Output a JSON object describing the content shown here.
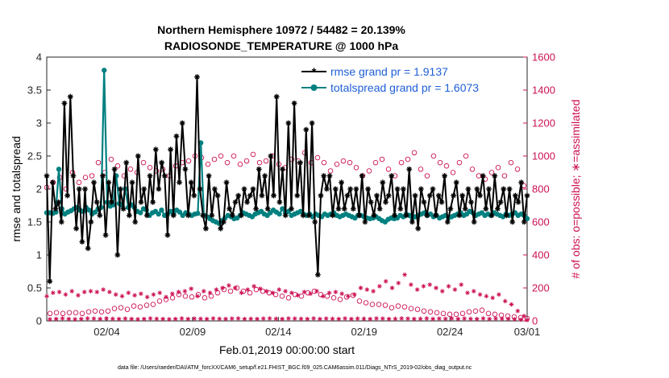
{
  "chart_data": {
    "type": "line",
    "title": "Northern Hemisphere 10972 / 54482 = 20.139%",
    "subtitle": "RADIOSONDE_TEMPERATURE @ 1000 hPa",
    "xlabel": "Feb.01,2019 00:00:00 start",
    "ylabel_left": "rmse and totalspread",
    "ylabel_right": "# of obs: o=possible; ∗=assimilated",
    "footer": "data file: /Users/raeder/DAI/ATM_forcXX/CAM6_setup/f.e21.FHIST_BGC.f09_025.CAM6assim.011/Diags_NTrS_2019-02/obs_diag_output.nc",
    "x_range": [
      1,
      29
    ],
    "ylim_left": [
      0,
      4
    ],
    "ylim_right": [
      0,
      1600
    ],
    "xticks": [
      {
        "value": 4.5,
        "label": "02/04"
      },
      {
        "value": 9.5,
        "label": "02/09"
      },
      {
        "value": 14.5,
        "label": "02/14"
      },
      {
        "value": 19.5,
        "label": "02/19"
      },
      {
        "value": 24.5,
        "label": "02/24"
      },
      {
        "value": 29.5,
        "label": "03/01"
      }
    ],
    "yticks_left": [
      "0",
      "0.5",
      "1",
      "1.5",
      "2",
      "2.5",
      "3",
      "3.5",
      "4"
    ],
    "yticks_right": [
      "0",
      "200",
      "400",
      "600",
      "800",
      "1000",
      "1200",
      "1400",
      "1600"
    ],
    "series": [
      {
        "name": "rmse grand pr = 1.9137",
        "axis": "left",
        "color": "#000000",
        "marker": "asterisk",
        "values": [
          2.2,
          0.6,
          2.1,
          1.7,
          1.8,
          1.5,
          3.3,
          1.9,
          3.4,
          2.2,
          1.4,
          2.0,
          1.2,
          2.0,
          1.1,
          1.5,
          2.1,
          1.8,
          1.6,
          2.2,
          1.3,
          2.1,
          1.8,
          2.3,
          1.0,
          2.0,
          1.7,
          2.4,
          1.6,
          2.1,
          1.5,
          2.5,
          1.8,
          2.0,
          1.6,
          2.2,
          1.8,
          2.6,
          2.0,
          2.4,
          2.2,
          1.3,
          2.6,
          1.6,
          2.8,
          2.1,
          3.0,
          2.3,
          1.6,
          2.1,
          1.9,
          3.7,
          2.0,
          1.6,
          1.4,
          2.2,
          1.6,
          2.0,
          1.9,
          1.4,
          1.5,
          2.1,
          1.7,
          1.6,
          1.8,
          1.9,
          1.6,
          2.0,
          1.8,
          1.9,
          2.0,
          1.7,
          2.3,
          1.9,
          2.2,
          1.7,
          2.5,
          1.9,
          3.4,
          1.8,
          2.3,
          1.6,
          3.0,
          1.7,
          3.3,
          1.9,
          2.4,
          1.6,
          2.9,
          1.6,
          3.0,
          1.5,
          0.7,
          1.9,
          2.2,
          2.0,
          2.2,
          1.6,
          2.0,
          1.7,
          2.1,
          1.7,
          1.9,
          2.0,
          1.7,
          2.0,
          1.6,
          2.2,
          1.5,
          2.0,
          1.8,
          1.6,
          1.9,
          1.7,
          2.1,
          1.8,
          1.9,
          2.2,
          1.6,
          2.0,
          1.7,
          2.0,
          1.6,
          2.3,
          1.5,
          1.9,
          1.4,
          2.0,
          1.8,
          1.6,
          1.9,
          2.0,
          1.6,
          1.9,
          1.8,
          2.2,
          1.5,
          1.7,
          1.9,
          2.1,
          1.6,
          1.9,
          1.7,
          2.0,
          1.8,
          1.5,
          2.0,
          1.9,
          2.2,
          1.7,
          2.0,
          1.6,
          2.2,
          1.7,
          1.8,
          2.0,
          1.6,
          2.0,
          1.5,
          1.9,
          1.8,
          2.1,
          1.5,
          1.9
        ]
      },
      {
        "name": "totalspread grand pr = 1.6073",
        "axis": "left",
        "color": "#008080",
        "marker": "dot",
        "values": [
          1.64,
          1.64,
          1.63,
          1.65,
          2.3,
          1.7,
          1.62,
          1.65,
          1.67,
          1.7,
          1.72,
          1.68,
          1.66,
          1.72,
          1.68,
          1.62,
          1.65,
          1.7,
          1.72,
          3.8,
          1.8,
          1.74,
          1.76,
          2.2,
          1.78,
          1.75,
          2.0,
          1.72,
          1.76,
          1.72,
          1.66,
          1.64,
          1.7,
          1.68,
          1.6,
          1.64,
          1.66,
          1.62,
          1.68,
          1.6,
          1.62,
          1.66,
          1.62,
          1.68,
          1.65,
          1.6,
          1.64,
          1.62,
          1.6,
          1.62,
          1.63,
          2.7,
          1.6,
          1.58,
          1.55,
          1.52,
          1.5,
          1.48,
          1.52,
          1.56,
          1.6,
          1.58,
          1.55,
          1.56,
          1.6,
          1.64,
          1.62,
          1.6,
          1.58,
          1.62,
          1.64,
          1.66,
          1.62,
          1.6,
          1.64,
          1.68,
          1.65,
          1.62,
          1.7,
          1.64,
          1.66,
          1.6,
          1.62,
          1.64,
          1.66,
          1.62,
          1.6,
          1.62,
          1.58,
          1.62,
          1.6,
          1.58,
          1.62,
          1.6,
          1.62,
          1.64,
          1.6,
          1.58,
          1.6,
          1.62,
          1.6,
          1.58,
          1.56,
          1.6,
          1.6,
          1.58,
          1.56,
          1.55,
          1.56,
          1.58,
          1.55,
          1.52,
          1.5,
          1.54,
          1.56,
          1.55,
          1.56,
          1.6,
          1.58,
          1.62,
          1.6,
          1.56,
          1.58,
          1.6,
          1.62,
          1.64,
          1.6,
          1.62,
          1.58,
          1.6,
          1.56,
          1.58,
          1.6,
          1.56,
          1.58,
          1.6,
          1.62,
          1.64,
          1.6,
          1.62,
          1.66,
          1.64,
          1.6,
          1.62,
          1.64,
          1.6,
          1.62,
          1.6,
          1.64,
          1.62,
          1.6,
          1.58,
          1.62,
          1.6,
          1.62,
          1.64,
          1.6,
          1.62,
          1.6,
          1.55
        ]
      },
      {
        "name": "possible",
        "axis": "right",
        "color": "#cc1155",
        "marker": "circle",
        "values": [
          810,
          45,
          840,
          50,
          870,
          45,
          800,
          50,
          900,
          50,
          840,
          45,
          870,
          55,
          880,
          60,
          960,
          55,
          900,
          60,
          980,
          75,
          940,
          80,
          880,
          70,
          920,
          90,
          900,
          85,
          960,
          95,
          930,
          100,
          910,
          120,
          920,
          130,
          880,
          140,
          940,
          160,
          960,
          150,
          970,
          145,
          1000,
          160,
          990,
          140,
          950,
          150,
          980,
          170,
          1000,
          190,
          960,
          180,
          1000,
          200,
          950,
          180,
          970,
          170,
          1010,
          190,
          960,
          180,
          970,
          170,
          1000,
          160,
          950,
          150,
          930,
          140,
          980,
          160,
          970,
          150,
          1020,
          170,
          960,
          180,
          990,
          160,
          960,
          150,
          910,
          140,
          950,
          130,
          970,
          145,
          960,
          155,
          930,
          120,
          880,
          110,
          910,
          100,
          960,
          100,
          980,
          95,
          920,
          80,
          880,
          90,
          960,
          85,
          980,
          75,
          1020,
          70,
          920,
          60,
          880,
          55,
          1000,
          50,
          960,
          45,
          940,
          40,
          900,
          40,
          960,
          45,
          1000,
          55,
          920,
          60,
          880,
          65,
          860,
          45,
          900,
          40,
          930,
          35,
          880,
          30,
          960,
          25,
          920,
          20,
          820,
          15
        ]
      },
      {
        "name": "assimilated",
        "axis": "right",
        "color": "#cc1155",
        "marker": "asterisk",
        "values": [
          150,
          10,
          170,
          12,
          175,
          15,
          160,
          12,
          180,
          10,
          155,
          12,
          175,
          15,
          180,
          14,
          175,
          12,
          190,
          15,
          175,
          13,
          160,
          12,
          150,
          14,
          170,
          12,
          155,
          10,
          165,
          12,
          145,
          15,
          160,
          13,
          170,
          12,
          145,
          10,
          165,
          12,
          175,
          15,
          180,
          12,
          195,
          14,
          150,
          13,
          180,
          12,
          170,
          15,
          190,
          13,
          200,
          12,
          215,
          14,
          200,
          15,
          170,
          12,
          190,
          13,
          210,
          12,
          195,
          14,
          180,
          15,
          170,
          13,
          190,
          12,
          180,
          15,
          170,
          14,
          155,
          13,
          175,
          12,
          165,
          15,
          180,
          12,
          150,
          14,
          170,
          13,
          175,
          12,
          165,
          15,
          150,
          12,
          160,
          14,
          200,
          13,
          190,
          12,
          180,
          15,
          210,
          14,
          240,
          12,
          200,
          13,
          230,
          15,
          280,
          14,
          220,
          12,
          190,
          13,
          210,
          15,
          220,
          12,
          200,
          14,
          180,
          13,
          210,
          15,
          190,
          12,
          220,
          14,
          170,
          13,
          180,
          12,
          160,
          15,
          150,
          12,
          140,
          14,
          160,
          13,
          120,
          12,
          100,
          10,
          60,
          8,
          30,
          5
        ]
      }
    ]
  }
}
